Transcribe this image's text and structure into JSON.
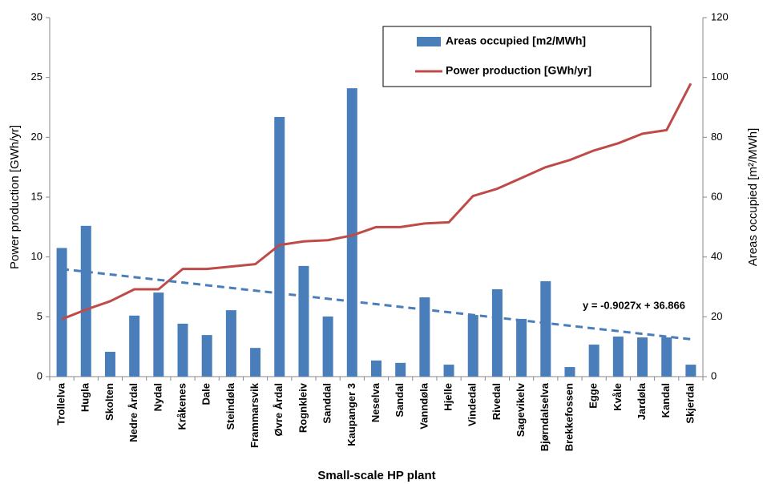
{
  "chart_data": {
    "type": "bar-line",
    "x_label": "Small-scale HP plant",
    "y_label": "Power production [GWh/yr]",
    "y2_label": "Areas occupied [m²/MWh]",
    "categories": [
      "Trollelva",
      "Hugla",
      "Skolten",
      "Nedre Årdal",
      "Nydal",
      "Kråkenes",
      "Dale",
      "Steindøla",
      "Frammarsvik",
      "Øvre Årdal",
      "Rognkleiv",
      "Sanddal",
      "Kaupanger 3",
      "Neselva",
      "Sandal",
      "Vanndøla",
      "Hjelle",
      "Vindedal",
      "Rivedal",
      "Sagevikelv",
      "Bjørndalselva",
      "Brekkefossen",
      "Egge",
      "Kvåle",
      "Jardøla",
      "Kandal",
      "Skjerdal"
    ],
    "series": [
      {
        "name": "Areas occupied [m2/MWh]",
        "type": "bar",
        "axis": "y2",
        "color": "#4a7ebb",
        "values": [
          43,
          50.4,
          8.3,
          20.4,
          28.1,
          17.7,
          13.9,
          22.2,
          9.6,
          86.8,
          37,
          20.1,
          96.4,
          5.4,
          4.6,
          26.5,
          4,
          20.6,
          29.2,
          19.3,
          31.9,
          3.2,
          10.7,
          13.4,
          13.1,
          13.1,
          4
        ]
      },
      {
        "name": "Power production [GWh/yr]",
        "type": "line",
        "axis": "y",
        "color": "#be4b48",
        "values": [
          4.8,
          5.6,
          6.3,
          7.3,
          7.3,
          9.0,
          9.0,
          9.2,
          9.4,
          11.0,
          11.3,
          11.4,
          11.8,
          12.5,
          12.5,
          12.8,
          12.9,
          15.1,
          15.7,
          16.6,
          17.5,
          18.1,
          18.9,
          19.5,
          20.3,
          20.6,
          24.5
        ]
      }
    ],
    "trendline": {
      "label": "y = -0.9027x + 36.866",
      "slope": -0.9027,
      "intercept": 36.866,
      "axis": "y2",
      "color": "#4a7ebb"
    },
    "ylim": [
      0,
      30
    ],
    "yticks": [
      0,
      5,
      10,
      15,
      20,
      25,
      30
    ],
    "y2lim": [
      0,
      120
    ],
    "y2ticks": [
      0,
      20,
      40,
      60,
      80,
      100,
      120
    ],
    "grid": false,
    "legend": "upper right"
  }
}
